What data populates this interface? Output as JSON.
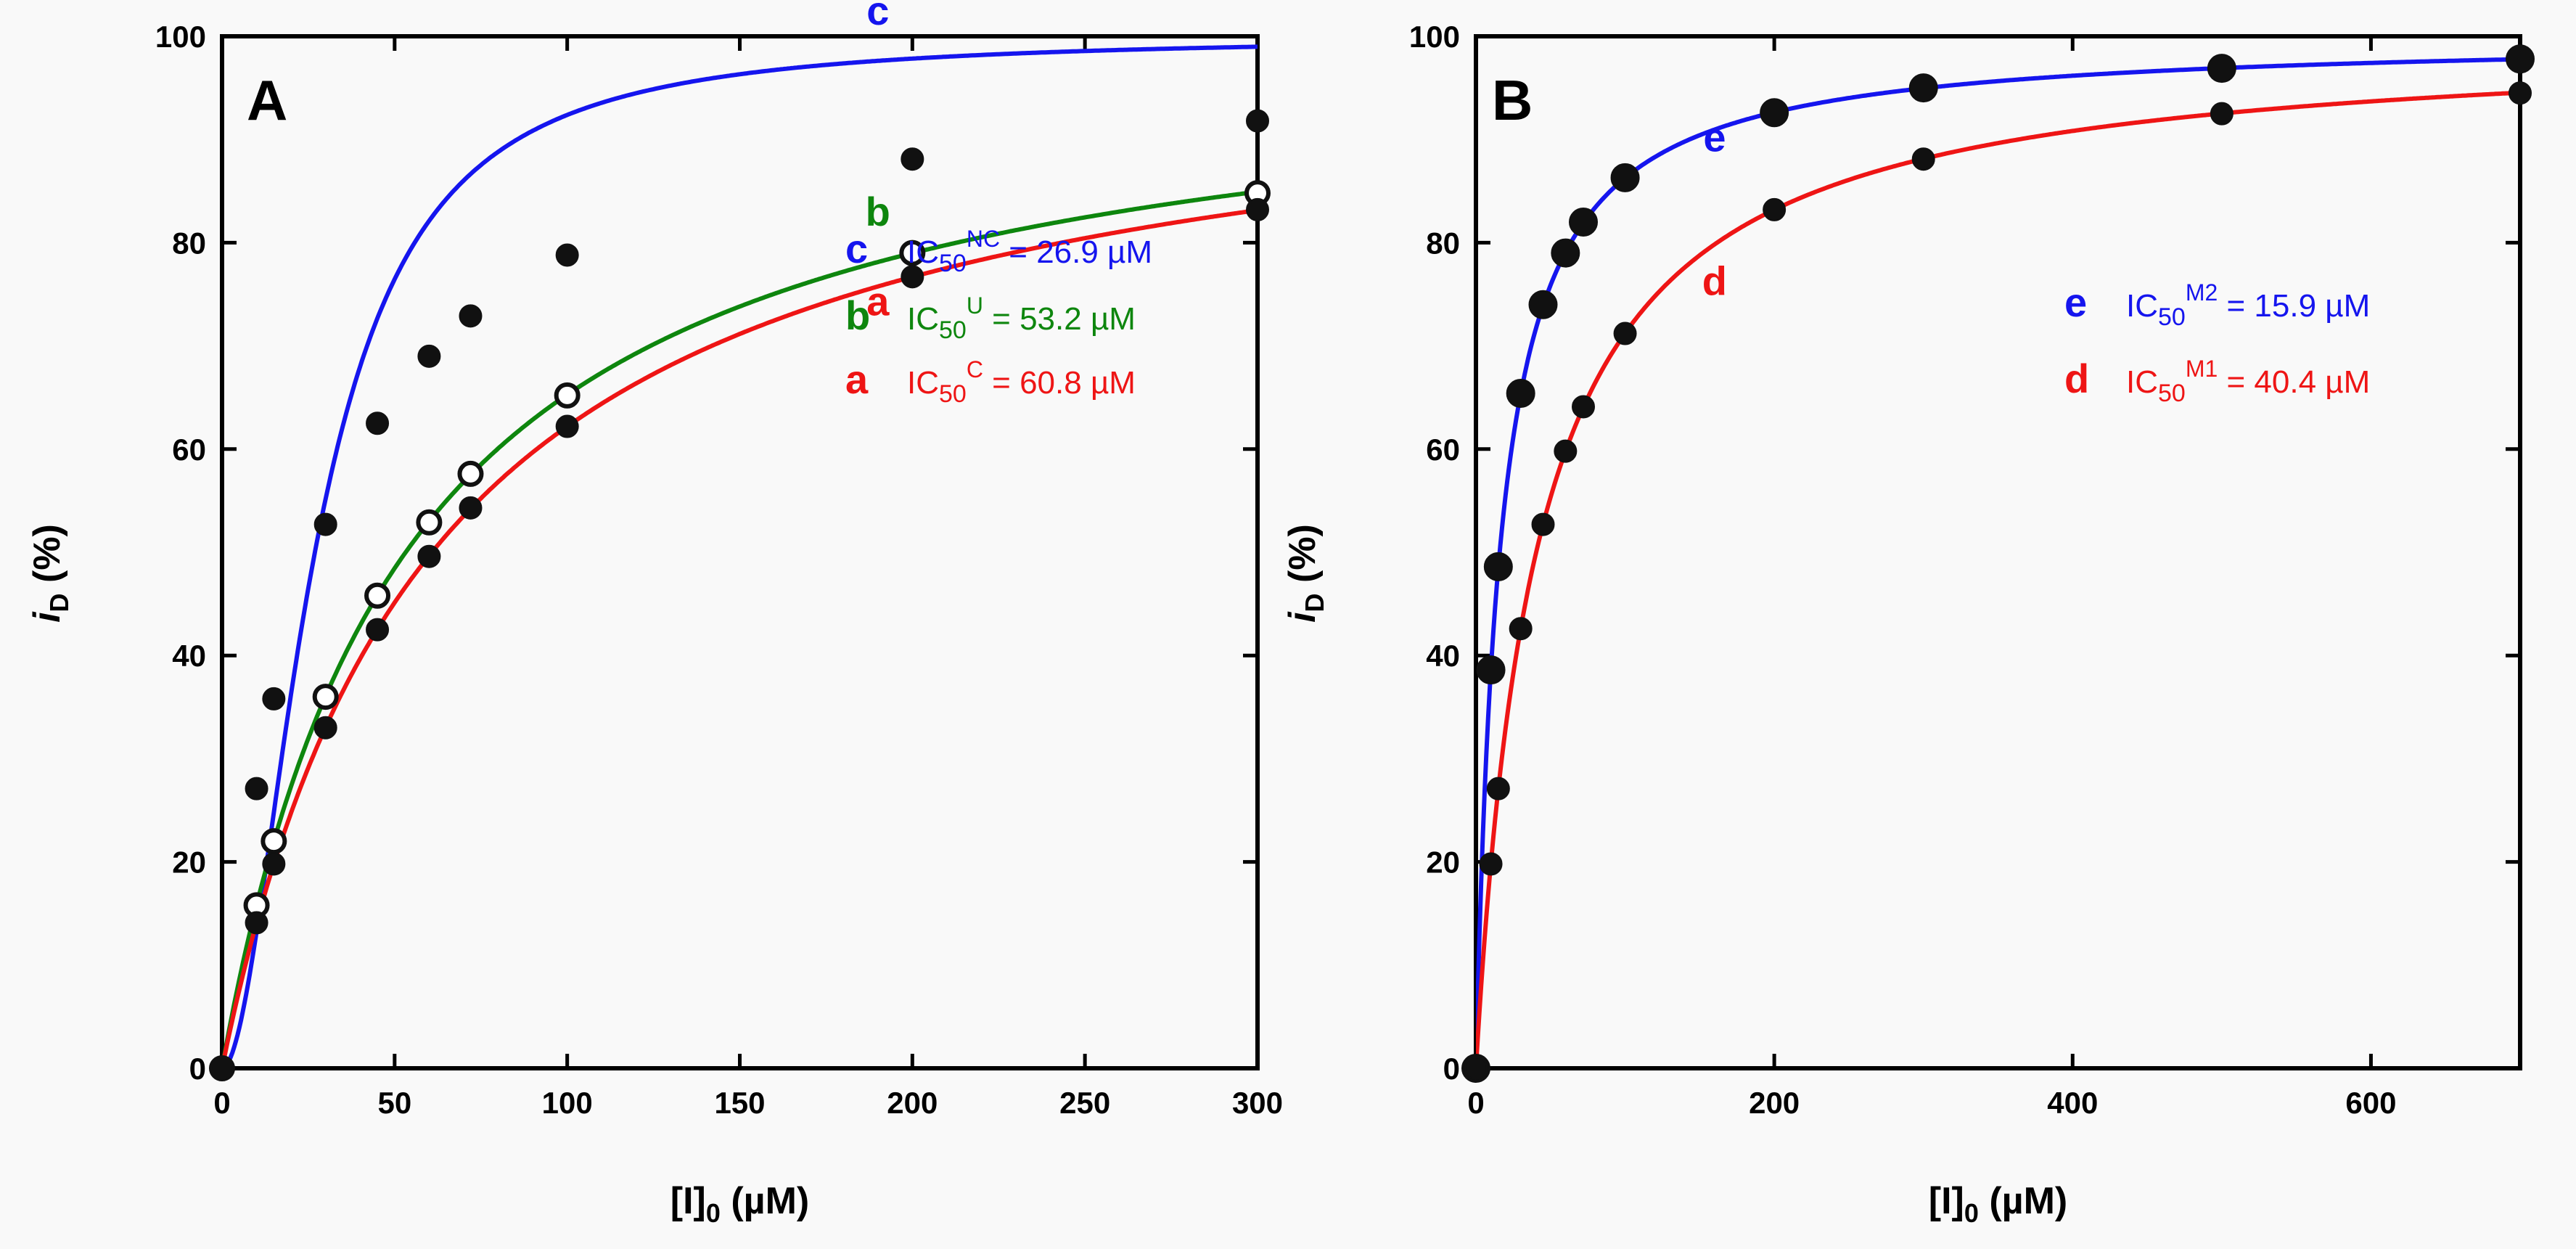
{
  "chart_data": [
    {
      "type": "line",
      "panel": "A",
      "xlabel": "[I]0 (µM)",
      "xlabel_main": "[I]",
      "xlabel_sub": "0",
      "xlabel_unit": " (µM)",
      "ylabel_main": "i",
      "ylabel_sub": "D",
      "ylabel_unit": " (%)",
      "xlim": [
        0,
        300
      ],
      "ylim": [
        0,
        100
      ],
      "xticks": [
        0,
        50,
        100,
        150,
        200,
        250,
        300
      ],
      "yticks": [
        0,
        20,
        40,
        60,
        80,
        100
      ],
      "series": [
        {
          "name": "c",
          "color": "#1515ee",
          "marker": "filled",
          "x": [
            0,
            10,
            15,
            30,
            45,
            60,
            72,
            100,
            200,
            300
          ],
          "y": [
            0,
            27.1,
            35.8,
            52.7,
            62.5,
            69.0,
            72.9,
            78.8,
            88.1,
            91.8
          ],
          "curve": {
            "model": "hill",
            "IC50": 26.9,
            "h": 1.9,
            "max": 100
          }
        },
        {
          "name": "b",
          "color": "#0e860e",
          "marker": "open",
          "x": [
            0,
            10,
            15,
            30,
            45,
            60,
            72,
            100,
            200,
            300
          ],
          "y": [
            0,
            15.8,
            22.0,
            36.0,
            45.8,
            52.9,
            57.6,
            65.2,
            79.0,
            84.8
          ],
          "curve": {
            "model": "hill",
            "IC50": 53.2,
            "h": 1.0,
            "max": 100
          }
        },
        {
          "name": "a",
          "color": "#ee1515",
          "marker": "filled",
          "x": [
            0,
            10,
            15,
            30,
            45,
            60,
            72,
            100,
            200,
            300
          ],
          "y": [
            0,
            14.1,
            19.8,
            33.0,
            42.5,
            49.6,
            54.3,
            62.2,
            76.7,
            83.2
          ],
          "curve": {
            "model": "hill",
            "IC50": 60.8,
            "h": 1.0,
            "max": 100
          }
        }
      ],
      "annotations": [
        {
          "letter": "c",
          "prefix": "IC",
          "sub": "50",
          "sup": "NC",
          "value": " = 26.9 µM",
          "color": "#1515ee"
        },
        {
          "letter": "b",
          "prefix": "IC",
          "sub": "50",
          "sup": "U",
          "value": " = 53.2 µM",
          "color": "#0e860e"
        },
        {
          "letter": "a",
          "prefix": "IC",
          "sub": "50",
          "sup": "C",
          "value": " = 60.8 µM",
          "color": "#ee1515"
        }
      ]
    },
    {
      "type": "line",
      "panel": "B",
      "xlabel": "[I]0 (µM)",
      "xlabel_main": "[I]",
      "xlabel_sub": "0",
      "xlabel_unit": " (µM)",
      "ylabel_main": "i",
      "ylabel_sub": "D",
      "ylabel_unit": " (%)",
      "xlim": [
        0,
        700
      ],
      "ylim": [
        0,
        100
      ],
      "xticks": [
        0,
        200,
        400,
        600
      ],
      "yticks": [
        0,
        20,
        40,
        60,
        80,
        100
      ],
      "series": [
        {
          "name": "e",
          "color": "#1515ee",
          "marker": "filled-large",
          "x": [
            0,
            10,
            15,
            30,
            45,
            60,
            72,
            100,
            200,
            300,
            500,
            700
          ],
          "y": [
            0,
            38.6,
            48.6,
            65.4,
            74.0,
            79.0,
            82.0,
            86.3,
            92.6,
            95.0,
            96.9,
            97.8
          ],
          "curve": {
            "model": "hill",
            "IC50": 15.9,
            "h": 1.0,
            "max": 100
          }
        },
        {
          "name": "d",
          "color": "#ee1515",
          "marker": "filled",
          "x": [
            0,
            10,
            15,
            30,
            45,
            60,
            72,
            100,
            200,
            300,
            500,
            700
          ],
          "y": [
            0,
            19.8,
            27.1,
            42.6,
            52.7,
            59.8,
            64.1,
            71.2,
            83.2,
            88.1,
            92.5,
            94.5
          ],
          "curve": {
            "model": "hill",
            "IC50": 40.4,
            "h": 1.0,
            "max": 100
          }
        }
      ],
      "annotations": [
        {
          "letter": "e",
          "prefix": "IC",
          "sub": "50",
          "sup": "M2",
          "value": " = 15.9 µM",
          "color": "#1515ee"
        },
        {
          "letter": "d",
          "prefix": "IC",
          "sub": "50",
          "sup": "M1",
          "value": " = 40.4 µM",
          "color": "#ee1515"
        }
      ]
    }
  ]
}
